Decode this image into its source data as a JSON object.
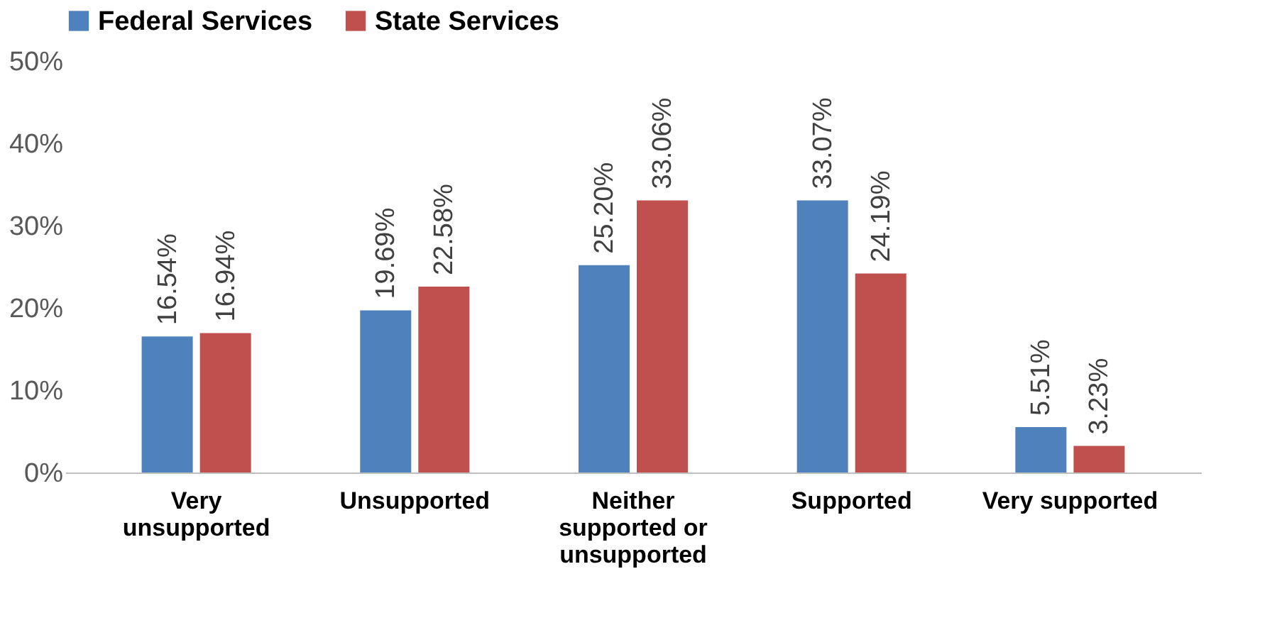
{
  "chart_data": {
    "type": "bar",
    "categories": [
      "Very unsupported",
      "Unsupported",
      "Neither supported or unsupported",
      "Supported",
      "Very supported"
    ],
    "series": [
      {
        "name": "Federal Services",
        "color": "#4f81bd",
        "values": [
          16.54,
          19.69,
          25.2,
          33.07,
          5.51
        ],
        "value_labels": [
          "16.54%",
          "19.69%",
          "25.20%",
          "33.07%",
          "5.51%"
        ]
      },
      {
        "name": "State Services",
        "color": "#c0504d",
        "values": [
          16.94,
          22.58,
          33.06,
          24.19,
          3.23
        ],
        "value_labels": [
          "16.94%",
          "22.58%",
          "33.06%",
          "24.19%",
          "3.23%"
        ]
      }
    ],
    "ylim": [
      0,
      50
    ],
    "yticks": [
      {
        "value": 0,
        "label": "0%"
      },
      {
        "value": 10,
        "label": "10%"
      },
      {
        "value": 20,
        "label": "20%"
      },
      {
        "value": 30,
        "label": "30%"
      },
      {
        "value": 40,
        "label": "40%"
      },
      {
        "value": 50,
        "label": "50%"
      }
    ],
    "grid": false,
    "legend": "top"
  }
}
